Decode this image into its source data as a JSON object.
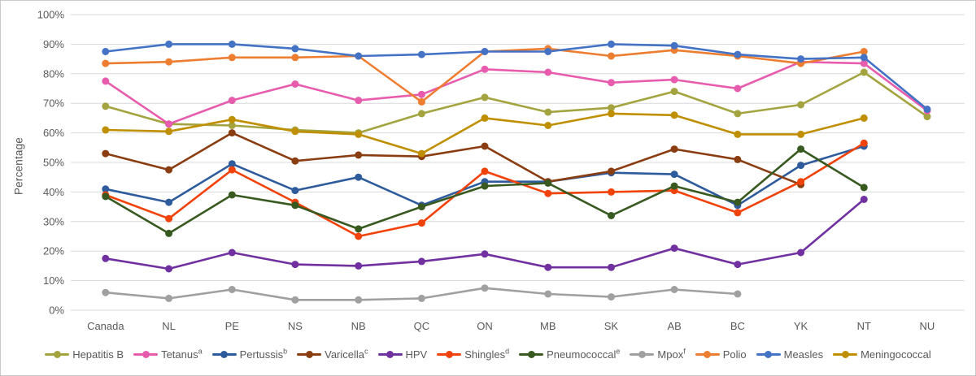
{
  "chart_data": {
    "type": "line",
    "title": "",
    "ylabel": "Percentage",
    "ylim": [
      0,
      100
    ],
    "grid": "horizontal",
    "legend_position": "bottom",
    "yticks": [
      "0%",
      "10%",
      "20%",
      "30%",
      "40%",
      "50%",
      "60%",
      "70%",
      "80%",
      "90%",
      "100%"
    ],
    "categories": [
      "Canada",
      "NL",
      "PE",
      "NS",
      "NB",
      "QC",
      "ON",
      "MB",
      "SK",
      "AB",
      "BC",
      "YK",
      "NT",
      "NU"
    ],
    "series": [
      {
        "name": "Hepatitis B",
        "sup": "",
        "color": "#a3a440",
        "values": [
          69,
          63,
          62.5,
          61,
          60,
          66.5,
          72,
          67,
          68.5,
          74,
          66.5,
          69.5,
          80.5,
          65.5
        ]
      },
      {
        "name": "Tetanus",
        "sup": "a",
        "color": "#e75cad",
        "values": [
          77.5,
          63,
          71,
          76.5,
          71,
          73,
          81.5,
          80.5,
          77,
          78,
          75,
          84,
          83.5,
          67.5
        ]
      },
      {
        "name": "Pertussis",
        "sup": "b",
        "color": "#2e5b9c",
        "values": [
          41,
          36.5,
          49.5,
          40.5,
          45,
          35.5,
          43.5,
          43.5,
          46.5,
          46,
          35.5,
          49,
          55.5,
          null
        ]
      },
      {
        "name": "Varicella",
        "sup": "c",
        "color": "#8a3d10",
        "values": [
          53,
          47.5,
          60,
          50.5,
          52.5,
          52,
          55.5,
          43.5,
          47,
          54.5,
          51,
          42.5,
          null,
          null
        ]
      },
      {
        "name": "HPV",
        "sup": "",
        "color": "#7030a0",
        "values": [
          17.5,
          14,
          19.5,
          15.5,
          15,
          16.5,
          19,
          14.5,
          14.5,
          21,
          15.5,
          19.5,
          37.5,
          null
        ]
      },
      {
        "name": "Shingles",
        "sup": "d",
        "color": "#f1420a",
        "values": [
          39,
          31,
          47.5,
          36.5,
          25,
          29.5,
          47,
          39.5,
          40,
          40.5,
          33,
          43.5,
          56.5,
          null
        ]
      },
      {
        "name": "Pneumococcal",
        "sup": "e",
        "color": "#38591f",
        "values": [
          38.5,
          26,
          39,
          35.5,
          27.5,
          35,
          42,
          43,
          32,
          42,
          36.5,
          54.5,
          41.5,
          null
        ]
      },
      {
        "name": "Mpox",
        "sup": "f",
        "color": "#a0a0a0",
        "values": [
          6,
          4,
          7,
          3.5,
          3.5,
          4,
          7.5,
          5.5,
          4.5,
          7,
          5.5,
          null,
          null,
          null
        ]
      },
      {
        "name": "Polio",
        "sup": "",
        "color": "#ed7d31",
        "values": [
          83.5,
          84,
          85.5,
          85.5,
          86,
          70.5,
          87.5,
          88.5,
          86,
          88,
          86,
          83.5,
          87.5,
          null
        ]
      },
      {
        "name": "Measles",
        "sup": "",
        "color": "#4472c4",
        "values": [
          87.5,
          90,
          90,
          88.5,
          86,
          86.5,
          87.5,
          87.5,
          90,
          89.5,
          86.5,
          85,
          85.5,
          68
        ]
      },
      {
        "name": "Meningococcal",
        "sup": "",
        "color": "#bf8f00",
        "values": [
          61,
          60.5,
          64.5,
          60.5,
          59.5,
          53,
          65,
          62.5,
          66.5,
          66,
          59.5,
          59.5,
          65,
          null
        ]
      }
    ]
  },
  "colors": {
    "text": "#595959",
    "gridline": "#d9d9d9",
    "border": "#c9c9c9",
    "background": "#ffffff"
  }
}
